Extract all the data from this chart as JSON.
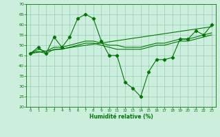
{
  "xlabel": "Humidité relative (%)",
  "bg_color": "#cceedd",
  "grid_color": "#99ccbb",
  "line_color": "#007700",
  "ylim": [
    20,
    70
  ],
  "xlim": [
    -0.5,
    23.5
  ],
  "yticks": [
    20,
    25,
    30,
    35,
    40,
    45,
    50,
    55,
    60,
    65,
    70
  ],
  "xticks": [
    0,
    1,
    2,
    3,
    4,
    5,
    6,
    7,
    8,
    9,
    10,
    11,
    12,
    13,
    14,
    15,
    16,
    17,
    18,
    19,
    20,
    21,
    22,
    23
  ],
  "series_main": {
    "x": [
      0,
      1,
      2,
      3,
      4,
      5,
      6,
      7,
      8,
      9,
      10,
      11,
      12,
      13,
      14,
      15,
      16,
      17,
      18,
      19,
      20,
      21,
      22,
      23
    ],
    "y": [
      46,
      49,
      46,
      54,
      49,
      54,
      63,
      65,
      63,
      52,
      45,
      45,
      32,
      29,
      25,
      37,
      43,
      43,
      44,
      53,
      53,
      57,
      55,
      60
    ]
  },
  "series_smooth1": {
    "x": [
      0,
      23
    ],
    "y": [
      46,
      59
    ]
  },
  "series_smooth2": {
    "x": [
      0,
      1,
      2,
      3,
      4,
      5,
      6,
      7,
      8,
      9,
      10,
      11,
      12,
      13,
      14,
      15,
      16,
      17,
      18,
      19,
      20,
      21,
      22,
      23
    ],
    "y": [
      46,
      48,
      47,
      49,
      49,
      50,
      51,
      52,
      52,
      51,
      50,
      50,
      49,
      49,
      49,
      50,
      51,
      51,
      52,
      53,
      53,
      54,
      55,
      56
    ]
  },
  "series_smooth3": {
    "x": [
      0,
      1,
      2,
      3,
      4,
      5,
      6,
      7,
      8,
      9,
      10,
      11,
      12,
      13,
      14,
      15,
      16,
      17,
      18,
      19,
      20,
      21,
      22,
      23
    ],
    "y": [
      46,
      47,
      46,
      48,
      48,
      49,
      50,
      51,
      51,
      50,
      49,
      48,
      48,
      48,
      48,
      49,
      50,
      50,
      51,
      52,
      52,
      53,
      54,
      55
    ]
  }
}
